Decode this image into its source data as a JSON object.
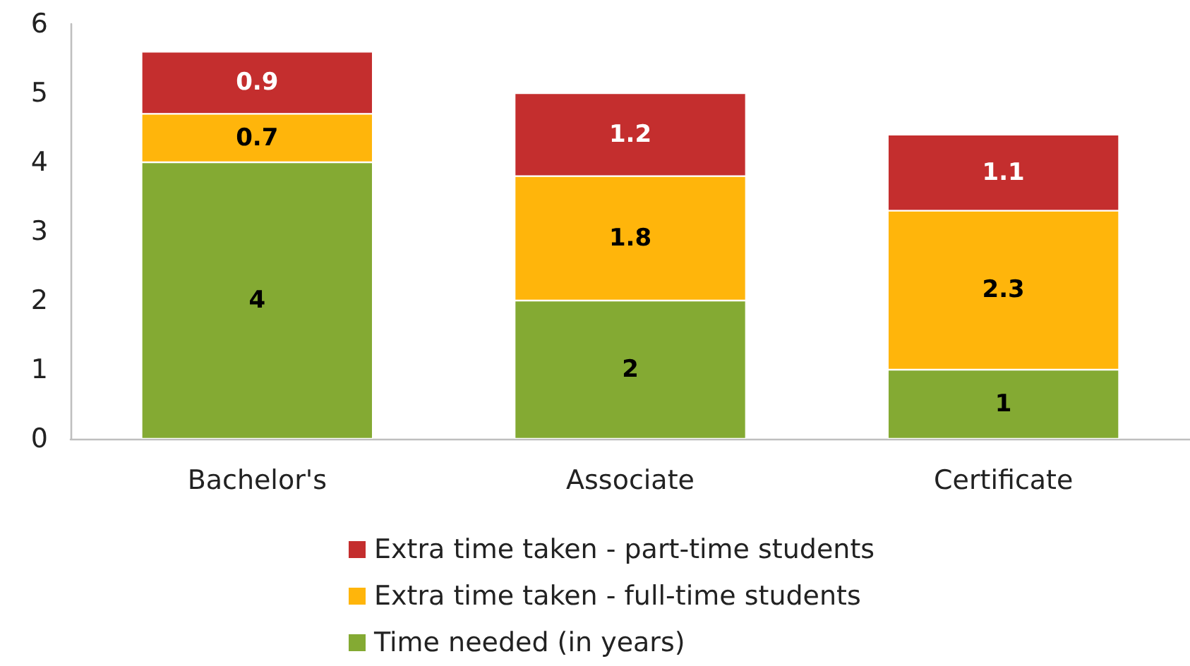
{
  "chart_data": {
    "type": "bar",
    "stacked": true,
    "categories": [
      "Bachelor's",
      "Associate",
      "Certificate"
    ],
    "series": [
      {
        "name": "Time needed (in years)",
        "color": "#84aa33",
        "values": [
          4,
          2,
          1
        ]
      },
      {
        "name": "Extra time taken - full-time students",
        "color": "#ffb50b",
        "values": [
          0.7,
          1.8,
          2.3
        ]
      },
      {
        "name": "Extra time taken - part-time students",
        "color": "#c42e2e",
        "values": [
          0.9,
          1.2,
          1.1
        ]
      }
    ],
    "ylim": [
      0,
      6
    ],
    "yticks": [
      0,
      1,
      2,
      3,
      4,
      5,
      6
    ],
    "grid": false,
    "legend": "bottom",
    "data_labels": true
  }
}
